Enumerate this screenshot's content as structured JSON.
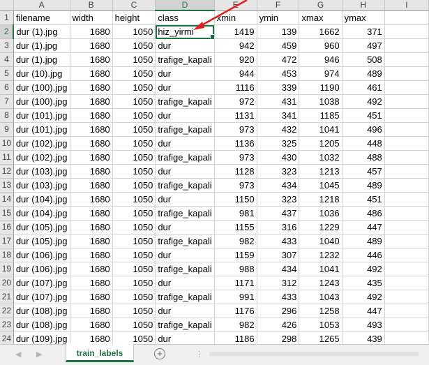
{
  "columns": [
    "A",
    "B",
    "C",
    "D",
    "E",
    "F",
    "G",
    "H",
    "I"
  ],
  "active_col": "D",
  "active_row": 2,
  "selected_cell": "D2",
  "header_row": [
    "filename",
    "width",
    "height",
    "class",
    "xmin",
    "ymin",
    "xmax",
    "ymax",
    ""
  ],
  "rows": [
    [
      "dur (1).jpg",
      "1680",
      "1050",
      "hiz_yirmi",
      "1419",
      "139",
      "1662",
      "371"
    ],
    [
      "dur (1).jpg",
      "1680",
      "1050",
      "dur",
      "942",
      "459",
      "960",
      "497"
    ],
    [
      "dur (1).jpg",
      "1680",
      "1050",
      "trafige_kapali",
      "920",
      "472",
      "946",
      "508"
    ],
    [
      "dur (10).jpg",
      "1680",
      "1050",
      "dur",
      "944",
      "453",
      "974",
      "489"
    ],
    [
      "dur (100).jpg",
      "1680",
      "1050",
      "dur",
      "1116",
      "339",
      "1190",
      "461"
    ],
    [
      "dur (100).jpg",
      "1680",
      "1050",
      "trafige_kapali",
      "972",
      "431",
      "1038",
      "492"
    ],
    [
      "dur (101).jpg",
      "1680",
      "1050",
      "dur",
      "1131",
      "341",
      "1185",
      "451"
    ],
    [
      "dur (101).jpg",
      "1680",
      "1050",
      "trafige_kapali",
      "973",
      "432",
      "1041",
      "496"
    ],
    [
      "dur (102).jpg",
      "1680",
      "1050",
      "dur",
      "1136",
      "325",
      "1205",
      "448"
    ],
    [
      "dur (102).jpg",
      "1680",
      "1050",
      "trafige_kapali",
      "973",
      "430",
      "1032",
      "488"
    ],
    [
      "dur (103).jpg",
      "1680",
      "1050",
      "dur",
      "1128",
      "323",
      "1213",
      "457"
    ],
    [
      "dur (103).jpg",
      "1680",
      "1050",
      "trafige_kapali",
      "973",
      "434",
      "1045",
      "489"
    ],
    [
      "dur (104).jpg",
      "1680",
      "1050",
      "dur",
      "1150",
      "323",
      "1218",
      "451"
    ],
    [
      "dur (104).jpg",
      "1680",
      "1050",
      "trafige_kapali",
      "981",
      "437",
      "1036",
      "486"
    ],
    [
      "dur (105).jpg",
      "1680",
      "1050",
      "dur",
      "1155",
      "316",
      "1229",
      "447"
    ],
    [
      "dur (105).jpg",
      "1680",
      "1050",
      "trafige_kapali",
      "982",
      "433",
      "1040",
      "489"
    ],
    [
      "dur (106).jpg",
      "1680",
      "1050",
      "dur",
      "1159",
      "307",
      "1232",
      "446"
    ],
    [
      "dur (106).jpg",
      "1680",
      "1050",
      "trafige_kapali",
      "988",
      "434",
      "1041",
      "492"
    ],
    [
      "dur (107).jpg",
      "1680",
      "1050",
      "dur",
      "1171",
      "312",
      "1243",
      "435"
    ],
    [
      "dur (107).jpg",
      "1680",
      "1050",
      "trafige_kapali",
      "991",
      "433",
      "1043",
      "492"
    ],
    [
      "dur (108).jpg",
      "1680",
      "1050",
      "dur",
      "1176",
      "296",
      "1258",
      "447"
    ],
    [
      "dur (108).jpg",
      "1680",
      "1050",
      "trafige_kapali",
      "982",
      "426",
      "1053",
      "493"
    ],
    [
      "dur (109).jpg",
      "1680",
      "1050",
      "dur",
      "1186",
      "298",
      "1265",
      "439"
    ]
  ],
  "sheet_tab": "train_labels",
  "add_sheet_symbol": "+",
  "nav_prev_symbol": "◀",
  "nav_next_symbol": "▶",
  "more_symbol": "⋮",
  "colors": {
    "accent": "#217346",
    "annotation_arrow": "#e02020"
  }
}
